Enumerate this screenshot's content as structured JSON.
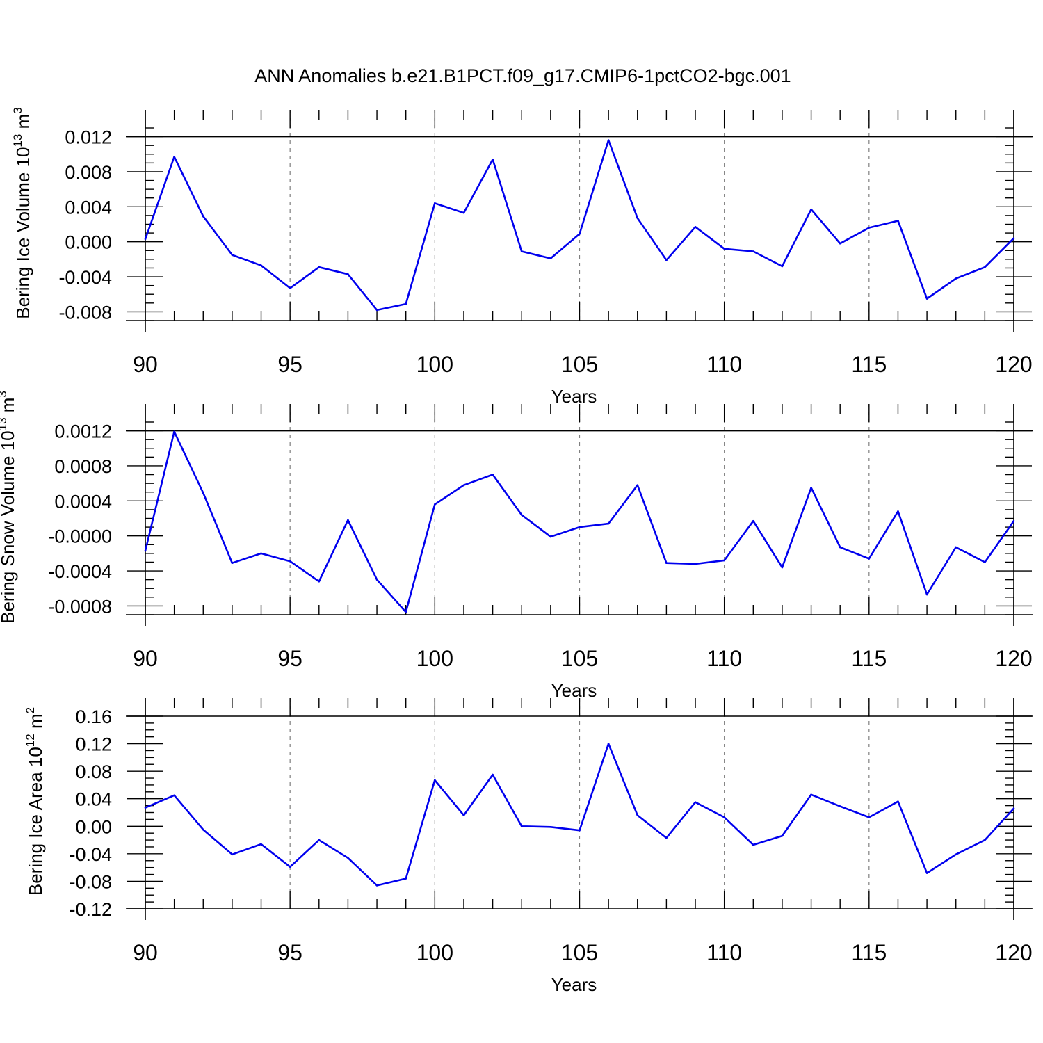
{
  "title": "ANN Anomalies b.e21.B1PCT.f09_g17.CMIP6-1pctCO2-bgc.001",
  "colors": {
    "series": "#0000ee",
    "grid": "#7f7f7f",
    "axis": "#000000"
  },
  "chart_data": [
    {
      "type": "line",
      "ylabel_main": "Bering Ice Volume 10",
      "ylabel_sup": "13",
      "ylabel_unit": " m",
      "ylabel_unit_sup": "3",
      "xlabel": "Years",
      "xlim": [
        90,
        120
      ],
      "ylim": [
        -0.009,
        0.013
      ],
      "xticks": [
        90,
        95,
        100,
        105,
        110,
        115,
        120
      ],
      "xtick_labels": [
        "90",
        "95",
        "100",
        "105",
        "110",
        "115",
        "120"
      ],
      "yticks": [
        -0.008,
        -0.004,
        0.0,
        0.004,
        0.008,
        0.012
      ],
      "ytick_labels": [
        "-0.008",
        "-0.004",
        "0.000",
        "0.004",
        "0.008",
        "0.012"
      ],
      "grid": "vertical dashed at major x ticks",
      "x": [
        90,
        91,
        92,
        93,
        94,
        95,
        96,
        97,
        98,
        99,
        100,
        101,
        102,
        103,
        104,
        105,
        106,
        107,
        108,
        109,
        110,
        111,
        112,
        113,
        114,
        115,
        116,
        117,
        118,
        119,
        120
      ],
      "y": [
        0.0003,
        0.0097,
        0.0029,
        -0.0015,
        -0.0027,
        -0.0053,
        -0.0029,
        -0.0037,
        -0.0078,
        -0.0071,
        0.0044,
        0.0033,
        0.0094,
        -0.0011,
        -0.0019,
        0.0009,
        0.0116,
        0.0027,
        -0.0021,
        0.0017,
        -0.0008,
        -0.0011,
        -0.0028,
        0.0037,
        -0.0002,
        0.0016,
        0.0024,
        -0.0065,
        -0.0042,
        -0.0029,
        0.0004
      ]
    },
    {
      "type": "line",
      "ylabel_main": "Bering Snow Volume 10",
      "ylabel_sup": "13",
      "ylabel_unit": " m",
      "ylabel_unit_sup": "3",
      "xlabel": "Years",
      "xlim": [
        90,
        120
      ],
      "ylim": [
        -0.0009,
        0.0013
      ],
      "xticks": [
        90,
        95,
        100,
        105,
        110,
        115,
        120
      ],
      "xtick_labels": [
        "90",
        "95",
        "100",
        "105",
        "110",
        "115",
        "120"
      ],
      "yticks": [
        -0.0008,
        -0.0004,
        0.0,
        0.0004,
        0.0008,
        0.0012
      ],
      "ytick_labels": [
        "-0.0008",
        "-0.0004",
        "-0.0000",
        "0.0004",
        "0.0008",
        "0.0012"
      ],
      "grid": "vertical dashed at major x ticks",
      "x": [
        90,
        91,
        92,
        93,
        94,
        95,
        96,
        97,
        98,
        99,
        100,
        101,
        102,
        103,
        104,
        105,
        106,
        107,
        108,
        109,
        110,
        111,
        112,
        113,
        114,
        115,
        116,
        117,
        118,
        119,
        120
      ],
      "y": [
        -0.00017,
        0.00119,
        0.00049,
        -0.00031,
        -0.0002,
        -0.00029,
        -0.00052,
        0.00018,
        -0.0005,
        -0.00087,
        0.00036,
        0.00058,
        0.0007,
        0.00024,
        -1e-05,
        0.0001,
        0.00014,
        0.00058,
        -0.00031,
        -0.00032,
        -0.00028,
        0.00017,
        -0.00036,
        0.00055,
        -0.00013,
        -0.00026,
        0.00028,
        -0.00067,
        -0.00013,
        -0.0003,
        0.00017
      ]
    },
    {
      "type": "line",
      "ylabel_main": "Bering Ice Area 10",
      "ylabel_sup": "12",
      "ylabel_unit": " m",
      "ylabel_unit_sup": "2",
      "xlabel": "Years",
      "xlim": [
        90,
        120
      ],
      "ylim": [
        -0.12,
        0.16
      ],
      "xticks": [
        90,
        95,
        100,
        105,
        110,
        115,
        120
      ],
      "xtick_labels": [
        "90",
        "95",
        "100",
        "105",
        "110",
        "115",
        "120"
      ],
      "yticks": [
        -0.12,
        -0.08,
        -0.04,
        0.0,
        0.04,
        0.08,
        0.12,
        0.16
      ],
      "ytick_labels": [
        "-0.12",
        "-0.08",
        "-0.04",
        "0.00",
        "0.04",
        "0.08",
        "0.12",
        "0.16"
      ],
      "grid": "vertical dashed at major x ticks",
      "x": [
        90,
        91,
        92,
        93,
        94,
        95,
        96,
        97,
        98,
        99,
        100,
        101,
        102,
        103,
        104,
        105,
        106,
        107,
        108,
        109,
        110,
        111,
        112,
        113,
        114,
        115,
        116,
        117,
        118,
        119,
        120
      ],
      "y": [
        0.027,
        0.045,
        -0.005,
        -0.041,
        -0.026,
        -0.059,
        -0.02,
        -0.046,
        -0.086,
        -0.076,
        0.067,
        0.016,
        0.075,
        0.0,
        -0.001,
        -0.006,
        0.12,
        0.016,
        -0.017,
        0.035,
        0.013,
        -0.027,
        -0.014,
        0.046,
        0.029,
        0.013,
        0.036,
        -0.068,
        -0.041,
        -0.02,
        0.026
      ]
    }
  ]
}
